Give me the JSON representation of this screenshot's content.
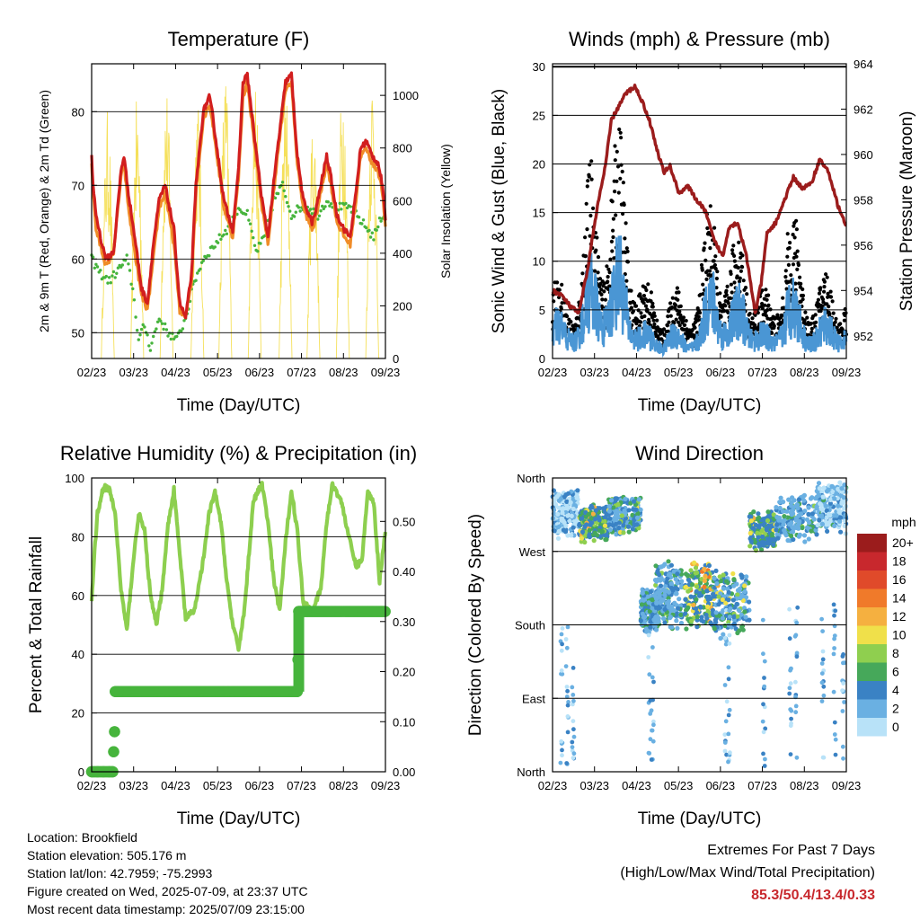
{
  "colors": {
    "temp_2m": "#f08c28",
    "temp_9m": "#d21e1e",
    "dewpoint": "#46b43c",
    "solar": "#f5e05a",
    "sonic_wind": "#4a96d4",
    "gust": "#000000",
    "pressure": "#9b1c1c",
    "humidity": "#8dcf4f",
    "rain": "#46b43c"
  },
  "charts": {
    "temperature": {
      "title": "Temperature (F)",
      "xlabel": "Time (Day/UTC)",
      "ylabel_left": "2m & 9m T (Red, Orange) & 2m Td (Green)",
      "ylabel_right": "Solar Insolation (Yellow)"
    },
    "winds": {
      "title": "Winds (mph) & Pressure (mb)",
      "xlabel": "Time (Day/UTC)",
      "ylabel_left": "Sonic Wind & Gust (Blue, Black)",
      "ylabel_right": "Station Pressure (Maroon)"
    },
    "humidity": {
      "title": "Relative Humidity (%) & Precipitation (in)",
      "xlabel": "Time (Day/UTC)",
      "ylabel_left": "Percent & Total Rainfall"
    },
    "direction": {
      "title": "Wind Direction",
      "xlabel": "Time (Day/UTC)",
      "ylabel_left": "Direction (Colored By Speed)",
      "legend_title": "mph"
    }
  },
  "chart_data": [
    {
      "type": "line",
      "title": "Temperature (F)",
      "xlabel": "Time (Day/UTC)",
      "ylabel": "2m & 9m T (Red, Orange) & 2m Td (Green)",
      "ylabel_right": "Solar Insolation (Yellow)",
      "x_ticks": [
        "02/23",
        "03/23",
        "04/23",
        "05/23",
        "06/23",
        "07/23",
        "08/23",
        "09/23"
      ],
      "y_ticks": [
        50,
        60,
        70,
        80
      ],
      "y_right_ticks": [
        0,
        200,
        400,
        600,
        800,
        1000
      ],
      "ylim": [
        46.5,
        86.5
      ],
      "y_right_lim": [
        0,
        1120
      ],
      "grid": true,
      "series": [
        {
          "color_key": "temp_9m",
          "style": "line",
          "x": [
            0,
            0.05,
            0.15,
            0.35,
            0.5,
            0.75,
            1.0,
            1.1,
            1.25,
            1.5,
            1.7,
            1.9,
            2.1,
            2.3,
            2.5,
            2.8,
            3.0,
            3.2,
            3.4,
            3.55,
            3.8,
            4.0,
            4.1,
            4.3,
            4.5,
            4.8,
            5.0,
            5.15,
            5.3,
            5.5,
            5.8,
            6.0,
            6.3,
            6.6,
            6.8,
            7.0,
            7.2,
            7.4,
            7.5,
            7.6,
            7.8,
            8.0,
            8.15,
            8.35,
            8.6,
            8.8,
            9.0,
            9.15,
            9.35,
            9.55,
            9.75,
            9.9,
            10.0
          ],
          "y": [
            74,
            70,
            66,
            62,
            60,
            61,
            72,
            74,
            69,
            62,
            56,
            54,
            62,
            68,
            70,
            64,
            54,
            52,
            58,
            70,
            80,
            82,
            80,
            74,
            68,
            64,
            72,
            84,
            85,
            78,
            68,
            63,
            74,
            84,
            85,
            74,
            68,
            66,
            65,
            66,
            70,
            74,
            71,
            66,
            64,
            63,
            69,
            75,
            76,
            74,
            73,
            70,
            65
          ]
        },
        {
          "color_key": "temp_2m",
          "style": "line",
          "x": [
            0,
            0.05,
            0.15,
            0.35,
            0.5,
            0.75,
            1.0,
            1.1,
            1.25,
            1.5,
            1.7,
            1.9,
            2.1,
            2.3,
            2.5,
            2.8,
            3.0,
            3.2,
            3.4,
            3.55,
            3.8,
            4.0,
            4.1,
            4.3,
            4.5,
            4.8,
            5.0,
            5.15,
            5.3,
            5.5,
            5.8,
            6.0,
            6.3,
            6.6,
            6.8,
            7.0,
            7.2,
            7.4,
            7.5,
            7.6,
            7.8,
            8.0,
            8.15,
            8.35,
            8.6,
            8.8,
            9.0,
            9.15,
            9.35,
            9.55,
            9.75,
            9.9,
            10.0
          ],
          "y": [
            73,
            69,
            64,
            61,
            59,
            61,
            71,
            73,
            67,
            60,
            55,
            53,
            60,
            67,
            69,
            62,
            53,
            52,
            57,
            69,
            79,
            81,
            79,
            73,
            67,
            63,
            71,
            82,
            84,
            77,
            67,
            62,
            73,
            83,
            84,
            73,
            67,
            65,
            64,
            65,
            69,
            73,
            70,
            65,
            63,
            62,
            68,
            74,
            75,
            73,
            72,
            69,
            64
          ]
        },
        {
          "color_key": "dewpoint",
          "style": "dots",
          "x": [
            0,
            0.3,
            0.6,
            1.0,
            1.2,
            1.4,
            1.6,
            1.8,
            2.0,
            2.3,
            2.6,
            2.9,
            3.2,
            3.5,
            3.8,
            4.2,
            4.6,
            5.0,
            5.3,
            5.6,
            5.9,
            6.2,
            6.5,
            6.8,
            7.1,
            7.4,
            7.7,
            8.0,
            8.4,
            8.8,
            9.2,
            9.6,
            9.9,
            10.0
          ],
          "y": [
            60,
            58,
            57,
            59,
            60,
            56,
            49,
            51,
            48,
            52,
            50,
            49,
            52,
            57,
            60,
            62,
            64,
            67,
            66,
            61,
            63,
            68,
            70,
            66,
            67,
            67,
            66,
            68,
            67,
            67,
            65,
            63,
            66,
            66
          ]
        },
        {
          "color_key": "solar",
          "style": "lines",
          "axis": "right",
          "day_peaks": [
            0.55,
            1.55,
            2.55,
            3.6,
            4.55,
            5.55,
            6.6,
            7.55,
            8.55,
            9.55
          ],
          "peak_values": [
            950,
            1000,
            1050,
            1000,
            1100,
            1100,
            1050,
            950,
            1100,
            1100
          ]
        }
      ]
    },
    {
      "type": "line",
      "title": "Winds (mph) & Pressure (mb)",
      "xlabel": "Time (Day/UTC)",
      "ylabel": "Sonic Wind & Gust (Blue, Black)",
      "ylabel_right": "Station Pressure (Maroon)",
      "x_ticks": [
        "02/23",
        "03/23",
        "04/23",
        "05/23",
        "06/23",
        "07/23",
        "08/23",
        "09/23"
      ],
      "y_ticks": [
        0,
        5,
        10,
        15,
        20,
        25,
        30
      ],
      "y_right_ticks": [
        952,
        954,
        956,
        958,
        960,
        962,
        964
      ],
      "ylim": [
        0,
        30.3
      ],
      "y_right_lim": [
        951.0,
        964.0
      ],
      "grid": true,
      "series": [
        {
          "color_key": "sonic_wind",
          "style": "noisy",
          "x": [
            0,
            0.5,
            1.0,
            1.3,
            1.6,
            2.0,
            2.3,
            2.6,
            3.0,
            3.5,
            4.0,
            4.5,
            5.0,
            5.5,
            6.0,
            6.5,
            7.0,
            7.5,
            8.0,
            8.5,
            9.0,
            9.5,
            10.0
          ],
          "y": [
            4,
            3,
            5,
            8,
            7,
            8,
            9,
            6,
            3,
            2,
            3,
            2,
            3,
            8,
            4,
            6,
            3,
            2,
            7,
            4,
            3,
            4,
            3
          ]
        },
        {
          "color_key": "gust",
          "style": "noisy",
          "x": [
            0,
            0.5,
            1.0,
            1.3,
            1.6,
            2.0,
            2.3,
            2.6,
            3.0,
            3.5,
            4.0,
            4.5,
            5.0,
            5.5,
            6.0,
            6.5,
            7.0,
            7.5,
            8.0,
            8.5,
            9.0,
            9.5,
            10.0
          ],
          "y": [
            6,
            4,
            8,
            13,
            11,
            14,
            15,
            11,
            6,
            4,
            5,
            4,
            6,
            12,
            7,
            9,
            5,
            4,
            11,
            7,
            5,
            6,
            5
          ]
        },
        {
          "color_key": "pressure",
          "style": "line",
          "axis": "right",
          "x": [
            0,
            0.3,
            0.6,
            0.9,
            1.2,
            1.5,
            1.8,
            2.0,
            2.2,
            2.5,
            2.8,
            3.0,
            3.3,
            3.6,
            3.8,
            4.0,
            4.3,
            4.6,
            4.9,
            5.2,
            5.5,
            5.8,
            6.0,
            6.3,
            6.6,
            6.9,
            7.1,
            7.3,
            7.6,
            7.9,
            8.2,
            8.5,
            8.8,
            9.1,
            9.4,
            9.7,
            10.0
          ],
          "y": [
            954,
            953.8,
            953.3,
            953,
            955,
            957.5,
            959.5,
            961.5,
            962,
            962.7,
            963,
            962.5,
            961.5,
            960,
            959.2,
            959.5,
            958.3,
            958.6,
            958,
            957.5,
            956.2,
            955.5,
            956.8,
            957,
            955.5,
            953,
            954.3,
            956.5,
            957,
            958,
            959,
            958.5,
            958.7,
            959.8,
            959.2,
            957.8,
            956.8
          ]
        }
      ]
    },
    {
      "type": "line",
      "title": "Relative Humidity (%) & Precipitation (in)",
      "xlabel": "Time (Day/UTC)",
      "ylabel": "Percent & Total Rainfall",
      "x_ticks": [
        "02/23",
        "03/23",
        "04/23",
        "05/23",
        "06/23",
        "07/23",
        "08/23",
        "09/23"
      ],
      "y_ticks": [
        0,
        20,
        40,
        60,
        80,
        100
      ],
      "y_right_ticks": [
        "0.00",
        "0.10",
        "0.20",
        "0.30",
        "0.40",
        "0.50"
      ],
      "ylim": [
        0,
        100
      ],
      "y_right_lim": [
        0,
        0.5867
      ],
      "grid": true,
      "series": [
        {
          "color_key": "humidity",
          "style": "line",
          "x": [
            0,
            0.1,
            0.2,
            0.4,
            0.6,
            0.8,
            1.0,
            1.2,
            1.4,
            1.6,
            1.8,
            2.0,
            2.2,
            2.4,
            2.6,
            2.8,
            3.0,
            3.2,
            3.5,
            3.8,
            4.0,
            4.2,
            4.4,
            4.6,
            4.8,
            5.0,
            5.2,
            5.5,
            5.8,
            6.0,
            6.2,
            6.4,
            6.6,
            6.8,
            7.0,
            7.2,
            7.5,
            7.8,
            8.0,
            8.2,
            8.5,
            8.8,
            9.0,
            9.2,
            9.4,
            9.6,
            9.8,
            10.0
          ],
          "y": [
            58,
            75,
            88,
            97,
            96,
            88,
            62,
            48,
            70,
            88,
            82,
            60,
            50,
            62,
            84,
            96,
            74,
            52,
            55,
            72,
            88,
            95,
            85,
            65,
            50,
            42,
            55,
            92,
            98,
            85,
            65,
            55,
            78,
            96,
            82,
            58,
            55,
            62,
            85,
            98,
            92,
            78,
            70,
            72,
            95,
            92,
            65,
            82
          ]
        },
        {
          "color_key": "rain",
          "style": "markers",
          "axis": "right",
          "x": [
            0,
            0.2,
            0.4,
            0.6,
            0.72,
            0.75,
            0.78,
            0.8,
            0.85,
            0.9,
            7.0,
            7.05,
            7.1
          ],
          "y": [
            0,
            0,
            0,
            0,
            0,
            0.04,
            0.08,
            0.16,
            0.16,
            0.16,
            0.16,
            0.32,
            0.32
          ],
          "end_x": 10.0
        }
      ]
    },
    {
      "type": "scatter",
      "title": "Wind Direction",
      "xlabel": "Time (Day/UTC)",
      "ylabel": "Direction (Colored By Speed)",
      "x_ticks": [
        "02/23",
        "03/23",
        "04/23",
        "05/23",
        "06/23",
        "07/23",
        "08/23",
        "09/23"
      ],
      "y_ticks": [
        "North",
        "East",
        "South",
        "West",
        "North"
      ],
      "y_tick_degrees": [
        0,
        90,
        180,
        270,
        360
      ],
      "grid": true,
      "clusters": [
        {
          "x": [
            0,
            0.9
          ],
          "deg": [
            285,
            350
          ],
          "speed": [
            0,
            4
          ]
        },
        {
          "x": [
            0.9,
            1.9
          ],
          "deg": [
            280,
            330
          ],
          "speed": [
            3,
            10
          ]
        },
        {
          "x": [
            1.9,
            3.0
          ],
          "deg": [
            290,
            340
          ],
          "speed": [
            2,
            9
          ]
        },
        {
          "x": [
            3.0,
            3.6
          ],
          "deg": [
            170,
            225
          ],
          "speed": [
            2,
            6
          ]
        },
        {
          "x": [
            3.5,
            4.4
          ],
          "deg": [
            170,
            260
          ],
          "speed": [
            1,
            7
          ]
        },
        {
          "x": [
            4.5,
            5.5
          ],
          "deg": [
            170,
            260
          ],
          "speed": [
            3,
            12
          ]
        },
        {
          "x": [
            5.5,
            6.7
          ],
          "deg": [
            160,
            250
          ],
          "speed": [
            2,
            9
          ]
        },
        {
          "x": [
            6.7,
            7.6
          ],
          "deg": [
            270,
            320
          ],
          "speed": [
            3,
            10
          ]
        },
        {
          "x": [
            7.6,
            9.0
          ],
          "deg": [
            280,
            340
          ],
          "speed": [
            1,
            6
          ]
        },
        {
          "x": [
            9.0,
            10.0
          ],
          "deg": [
            290,
            360
          ],
          "speed": [
            0,
            5
          ]
        }
      ],
      "legend": {
        "title": "mph",
        "labels": [
          "20+",
          "18",
          "16",
          "14",
          "12",
          "10",
          "8",
          "6",
          "4",
          "2",
          "0"
        ],
        "colors": [
          "#9b1c1c",
          "#c8282d",
          "#e04a2a",
          "#f07a2a",
          "#f5b040",
          "#f0e04a",
          "#8fcf4f",
          "#46a85a",
          "#3a82c4",
          "#6ab0e2",
          "#b8e2f8"
        ]
      }
    }
  ],
  "footer": {
    "location": "Location: Brookfield",
    "elevation": "Station elevation: 505.176 m",
    "latlon": "Station lat/lon: 42.7959; -75.2993",
    "created": "Figure created on Wed, 2025-07-09, at 23:37 UTC",
    "recent": "Most recent data timestamp: 2025/07/09 23:15:00",
    "extremes_title": "Extremes For Past 7 Days",
    "extremes_sub": "(High/Low/Max Wind/Total Precipitation)",
    "extremes_values": "85.3/50.4/13.4/0.33"
  }
}
